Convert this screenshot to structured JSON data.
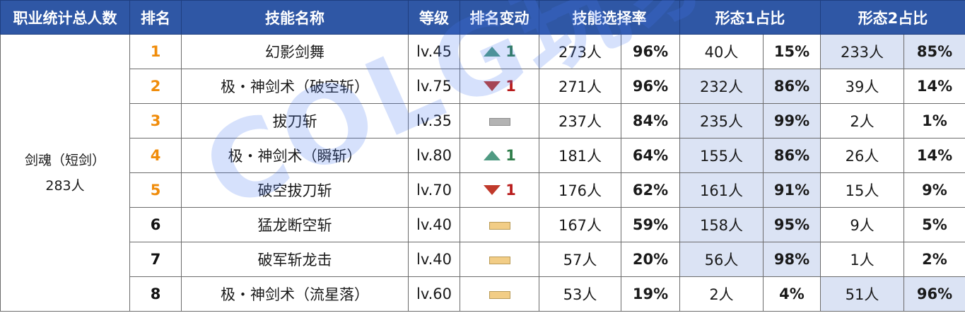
{
  "headers": {
    "profession_total": "职业统计总人数",
    "rank": "排名",
    "skill_name": "技能名称",
    "level": "等级",
    "rank_change": "排名变动",
    "selection_rate": "技能选择率",
    "form1": "形态1占比",
    "form2": "形态2占比"
  },
  "profession": {
    "name": "剑魂（短剑）",
    "total": "283人"
  },
  "rows": [
    {
      "rank": "1",
      "skill": "幻影剑舞",
      "level": "lv.45",
      "change": {
        "dir": "up",
        "value": "1",
        "icon": "triangle-up-icon"
      },
      "count": "273人",
      "rate": "96%",
      "f1_count": "40人",
      "f1_pct": "15%",
      "f2_count": "233人",
      "f2_pct": "85%"
    },
    {
      "rank": "2",
      "skill": "极・神剑术（破空斩）",
      "level": "lv.75",
      "change": {
        "dir": "down",
        "value": "1",
        "icon": "triangle-down-icon"
      },
      "count": "271人",
      "rate": "96%",
      "f1_count": "232人",
      "f1_pct": "86%",
      "f2_count": "39人",
      "f2_pct": "14%"
    },
    {
      "rank": "3",
      "skill": "拔刀斩",
      "level": "lv.35",
      "change": {
        "dir": "flat",
        "value": "",
        "icon": "flat-bar-icon"
      },
      "count": "237人",
      "rate": "84%",
      "f1_count": "235人",
      "f1_pct": "99%",
      "f2_count": "2人",
      "f2_pct": "1%"
    },
    {
      "rank": "4",
      "skill": "极・神剑术（瞬斩）",
      "level": "lv.80",
      "change": {
        "dir": "up",
        "value": "1",
        "icon": "triangle-up-icon"
      },
      "count": "181人",
      "rate": "64%",
      "f1_count": "155人",
      "f1_pct": "86%",
      "f2_count": "26人",
      "f2_pct": "14%"
    },
    {
      "rank": "5",
      "skill": "破空拔刀斩",
      "level": "lv.70",
      "change": {
        "dir": "down",
        "value": "1",
        "icon": "triangle-down-icon"
      },
      "count": "176人",
      "rate": "62%",
      "f1_count": "161人",
      "f1_pct": "91%",
      "f2_count": "15人",
      "f2_pct": "9%"
    },
    {
      "rank": "6",
      "skill": "猛龙断空斩",
      "level": "lv.40",
      "change": {
        "dir": "flat",
        "value": "",
        "icon": "flat-bar-icon"
      },
      "count": "167人",
      "rate": "59%",
      "f1_count": "158人",
      "f1_pct": "95%",
      "f2_count": "9人",
      "f2_pct": "5%"
    },
    {
      "rank": "7",
      "skill": "破军斩龙击",
      "level": "lv.40",
      "change": {
        "dir": "flat",
        "value": "",
        "icon": "flat-bar-icon"
      },
      "count": "57人",
      "rate": "20%",
      "f1_count": "56人",
      "f1_pct": "98%",
      "f2_count": "1人",
      "f2_pct": "2%"
    },
    {
      "rank": "8",
      "skill": "极・神剑术（流星落）",
      "level": "lv.60",
      "change": {
        "dir": "flat",
        "value": "",
        "icon": "flat-bar-icon"
      },
      "count": "53人",
      "rate": "19%",
      "f1_count": "2人",
      "f1_pct": "4%",
      "f2_count": "51人",
      "f2_pct": "96%"
    }
  ],
  "watermark": "COLG玩家社区",
  "colors": {
    "header_bg": "#2f57a5",
    "highlight": "#dbe3f4",
    "rank_gold": "#f08c0a",
    "up": "#4f9a82",
    "down": "#c0392b"
  }
}
